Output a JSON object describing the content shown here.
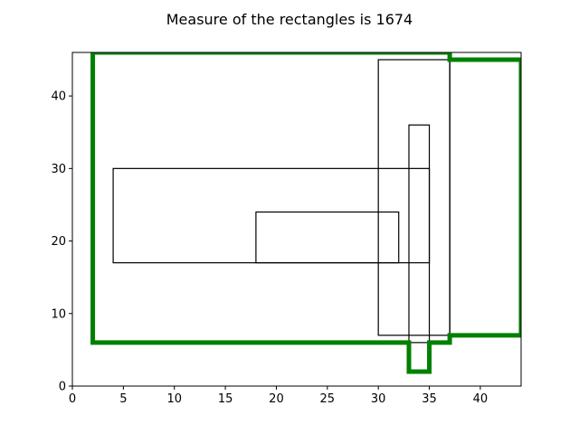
{
  "chart_data": {
    "type": "rectangles",
    "title": "Measure of the rectangles is 1674",
    "xlim": [
      0,
      44
    ],
    "ylim": [
      0,
      46
    ],
    "xticks": [
      0,
      5,
      10,
      15,
      20,
      25,
      30,
      35,
      40
    ],
    "yticks": [
      0,
      10,
      20,
      30,
      40
    ],
    "grid": false,
    "rectangles": [
      {
        "x0": 4,
        "y0": 17,
        "x1": 35,
        "y1": 30
      },
      {
        "x0": 18,
        "y0": 17,
        "x1": 32,
        "y1": 24
      },
      {
        "x0": 30,
        "y0": 7,
        "x1": 37,
        "y1": 45
      },
      {
        "x0": 33,
        "y0": 2,
        "x1": 35,
        "y1": 36
      },
      {
        "x0": 2,
        "y0": 6,
        "x1": 37,
        "y1": 46
      },
      {
        "x0": 37,
        "y0": 7,
        "x1": 44,
        "y1": 45
      }
    ],
    "union_outline": [
      [
        2,
        6
      ],
      [
        33,
        6
      ],
      [
        33,
        2
      ],
      [
        35,
        2
      ],
      [
        35,
        6
      ],
      [
        37,
        6
      ],
      [
        37,
        7
      ],
      [
        44,
        7
      ],
      [
        44,
        45
      ],
      [
        37,
        45
      ],
      [
        37,
        46
      ],
      [
        2,
        46
      ]
    ],
    "colors": {
      "rect": "#000000",
      "outline": "#008000",
      "axis": "#000000"
    }
  }
}
